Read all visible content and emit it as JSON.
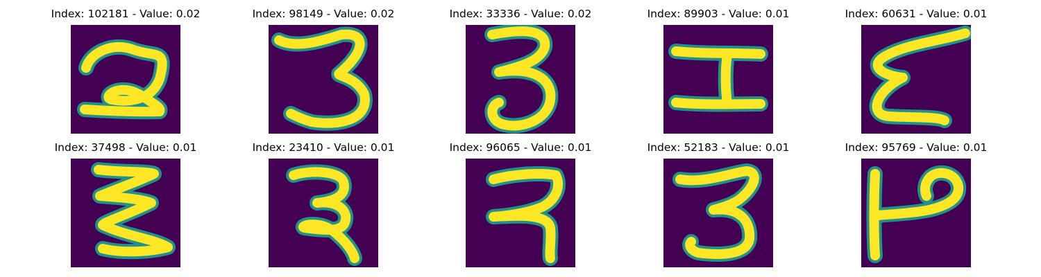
{
  "colors": {
    "background": "#440154",
    "edge": "#21918c",
    "stroke": "#fde725"
  },
  "panels": [
    {
      "title": "Index: 102181 - Value: 0.02",
      "glyph": "2"
    },
    {
      "title": "Index: 98149 - Value: 0.02",
      "glyph": "3"
    },
    {
      "title": "Index: 33336 - Value: 0.02",
      "glyph": "3"
    },
    {
      "title": "Index: 89903 - Value: 0.01",
      "glyph": "H"
    },
    {
      "title": "Index: 60631 - Value: 0.01",
      "glyph": "E"
    },
    {
      "title": "Index: 37498 - Value: 0.01",
      "glyph": "Z"
    },
    {
      "title": "Index: 23410 - Value: 0.01",
      "glyph": "2"
    },
    {
      "title": "Index: 96065 - Value: 0.01",
      "glyph": "2"
    },
    {
      "title": "Index: 52183 - Value: 0.01",
      "glyph": "3"
    },
    {
      "title": "Index: 95769 - Value: 0.01",
      "glyph": "P"
    }
  ]
}
